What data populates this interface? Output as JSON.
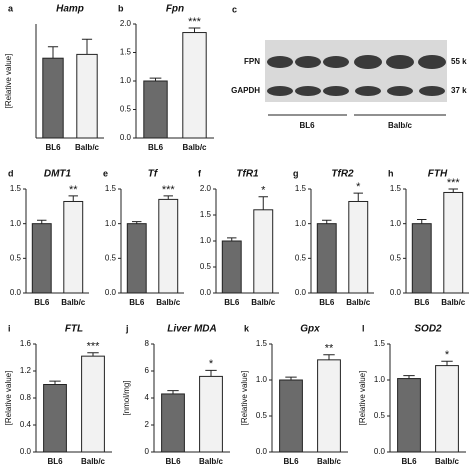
{
  "chart_data": [
    {
      "type": "bar",
      "label": "a",
      "title": "Hamp",
      "ylabel": "[Relative value]",
      "categories": [
        "BL6",
        "Balb/c"
      ],
      "values": [
        1.05,
        1.1
      ],
      "errors": [
        0.15,
        0.2
      ],
      "colors": [
        "#6b6b6b",
        "#f2f2f2"
      ],
      "ylim": [
        0,
        1.5
      ]
    },
    {
      "type": "bar",
      "label": "b",
      "title": "Fpn",
      "categories": [
        "BL6",
        "Balb/c"
      ],
      "values": [
        1.0,
        1.85
      ],
      "errors": [
        0.05,
        0.08
      ],
      "significance": "***",
      "colors": [
        "#6b6b6b",
        "#f2f2f2"
      ],
      "ylim": [
        0,
        2.0
      ],
      "yticks": [
        {
          "value": 0,
          "label": "0.0"
        },
        0.5,
        {
          "value": 1,
          "label": "1.0"
        },
        1.5,
        {
          "value": 2,
          "label": "2.0"
        }
      ]
    },
    {
      "type": "bar",
      "label": "d",
      "title": "DMT1",
      "categories": [
        "BL6",
        "Balb/c"
      ],
      "values": [
        1.0,
        1.32
      ],
      "errors": [
        0.05,
        0.08
      ],
      "significance": "**",
      "colors": [
        "#6b6b6b",
        "#f2f2f2"
      ],
      "ylim": [
        0,
        1.5
      ],
      "yticks": [
        {
          "value": 0,
          "label": "0.0"
        },
        0.5,
        {
          "value": 1,
          "label": "1.0"
        },
        1.5
      ]
    },
    {
      "type": "bar",
      "label": "e",
      "title": "Tf",
      "categories": [
        "BL6",
        "Balb/c"
      ],
      "values": [
        1.0,
        1.35
      ],
      "errors": [
        0.03,
        0.05
      ],
      "significance": "***",
      "colors": [
        "#6b6b6b",
        "#f2f2f2"
      ],
      "ylim": [
        0,
        1.5
      ],
      "yticks": [
        {
          "value": 0,
          "label": "0.0"
        },
        0.5,
        {
          "value": 1,
          "label": "1.0"
        },
        1.5
      ]
    },
    {
      "type": "bar",
      "label": "f",
      "title": "TfR1",
      "categories": [
        "BL6",
        "Balb/c"
      ],
      "values": [
        1.0,
        1.6
      ],
      "errors": [
        0.06,
        0.25
      ],
      "significance": "*",
      "colors": [
        "#6b6b6b",
        "#f2f2f2"
      ],
      "ylim": [
        0,
        2.0
      ],
      "yticks": [
        {
          "value": 0,
          "label": "0.0"
        },
        0.5,
        {
          "value": 1,
          "label": "1.0"
        },
        1.5,
        {
          "value": 2,
          "label": "2.0"
        }
      ]
    },
    {
      "type": "bar",
      "label": "g",
      "title": "TfR2",
      "categories": [
        "BL6",
        "Balb/c"
      ],
      "values": [
        1.0,
        1.32
      ],
      "errors": [
        0.05,
        0.12
      ],
      "significance": "*",
      "colors": [
        "#6b6b6b",
        "#f2f2f2"
      ],
      "ylim": [
        0,
        1.5
      ],
      "yticks": [
        {
          "value": 0,
          "label": "0.0"
        },
        0.5,
        {
          "value": 1,
          "label": "1.0"
        },
        1.5
      ]
    },
    {
      "type": "bar",
      "label": "h",
      "title": "FTH",
      "categories": [
        "BL6",
        "Balb/c"
      ],
      "values": [
        1.0,
        1.45
      ],
      "errors": [
        0.06,
        0.05
      ],
      "significance": "***",
      "colors": [
        "#6b6b6b",
        "#f2f2f2"
      ],
      "ylim": [
        0,
        1.5
      ],
      "yticks": [
        {
          "value": 0,
          "label": "0.0"
        },
        0.5,
        {
          "value": 1,
          "label": "1.0"
        },
        1.5
      ]
    },
    {
      "type": "bar",
      "label": "i",
      "title": "FTL",
      "ylabel": "[Relative value]",
      "categories": [
        "BL6",
        "Balb/c"
      ],
      "values": [
        1.0,
        1.42
      ],
      "errors": [
        0.05,
        0.05
      ],
      "significance": "***",
      "colors": [
        "#6b6b6b",
        "#f2f2f2"
      ],
      "ylim": [
        0,
        1.6
      ],
      "yticks": [
        {
          "value": 0,
          "label": "0.0"
        },
        0.4,
        0.8,
        1.2,
        1.6
      ]
    },
    {
      "type": "bar",
      "label": "j",
      "title": "Liver MDA",
      "ylabel": "[nmol/mg]",
      "categories": [
        "BL6",
        "Balb/c"
      ],
      "values": [
        4.3,
        5.6
      ],
      "errors": [
        0.25,
        0.45
      ],
      "significance": "*",
      "colors": [
        "#6b6b6b",
        "#f2f2f2"
      ],
      "ylim": [
        0,
        8
      ],
      "yticks": [
        0,
        2,
        4,
        6,
        8
      ]
    },
    {
      "type": "bar",
      "label": "k",
      "title": "Gpx",
      "ylabel": "[Relative value]",
      "categories": [
        "BL6",
        "Balb/c"
      ],
      "values": [
        1.0,
        1.28
      ],
      "errors": [
        0.04,
        0.07
      ],
      "significance": "**",
      "colors": [
        "#6b6b6b",
        "#f2f2f2"
      ],
      "ylim": [
        0,
        1.5
      ],
      "yticks": [
        {
          "value": 0,
          "label": "0.0"
        },
        0.5,
        {
          "value": 1,
          "label": "1.0"
        },
        1.5
      ]
    },
    {
      "type": "bar",
      "label": "l",
      "title": "SOD2",
      "ylabel": "[Relative value]",
      "categories": [
        "BL6",
        "Balb/c"
      ],
      "values": [
        1.02,
        1.2
      ],
      "errors": [
        0.04,
        0.06
      ],
      "significance": "*",
      "colors": [
        "#6b6b6b",
        "#f2f2f2"
      ],
      "ylim": [
        0,
        1.5
      ],
      "yticks": [
        {
          "value": 0,
          "label": "0.0"
        },
        0.5,
        {
          "value": 1,
          "label": "1.0"
        },
        1.5
      ]
    }
  ],
  "blot": {
    "label": "c",
    "rows": [
      "FPN",
      "GAPDH"
    ],
    "sizes": [
      "55 k",
      "37 k"
    ],
    "groups": [
      "BL6",
      "Balb/c"
    ]
  }
}
